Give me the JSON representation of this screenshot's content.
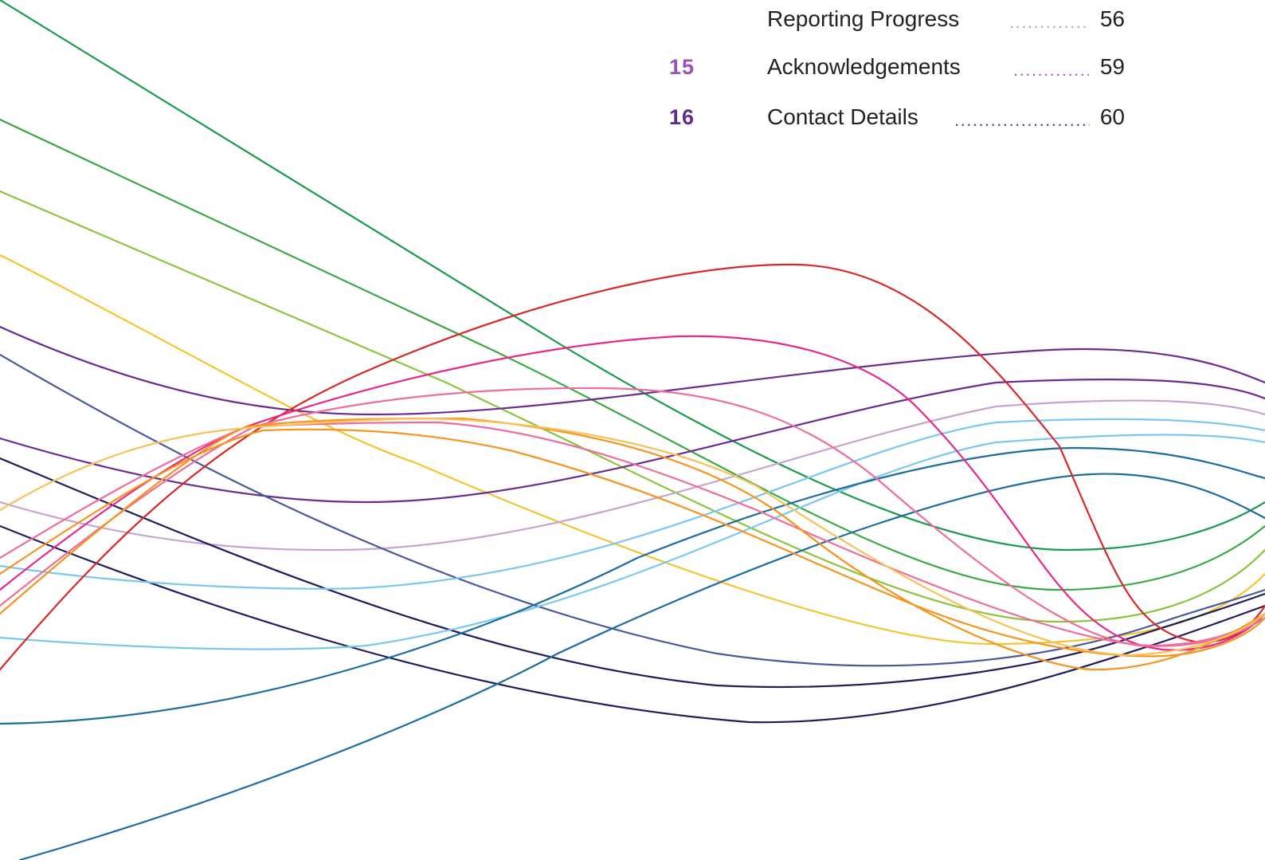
{
  "toc": {
    "entries": [
      {
        "number": "",
        "title": "Reporting Progress",
        "page": "56",
        "number_color": "#8b4aa6",
        "dot_color": "#c79bd3"
      },
      {
        "number": "15",
        "title": "Acknowledgements",
        "page": "59",
        "number_color": "#9a52b8",
        "dot_color": "#a563c0"
      },
      {
        "number": "16",
        "title": "Contact Details",
        "page": "60",
        "number_color": "#5e2d8e",
        "dot_color": "#6b35a0"
      }
    ],
    "leader_dots": "........................................................"
  },
  "art": {
    "line_colors": [
      "#1a9a4a",
      "#3aa845",
      "#8cc43f",
      "#f4c531",
      "#6a2c91",
      "#4a5a9a",
      "#1e1e5a",
      "#c7a3d1",
      "#7bc8ee",
      "#1d6e9e",
      "#d62a2a",
      "#e8278a",
      "#ee6d9c",
      "#f7941d",
      "#f7c25a"
    ]
  }
}
